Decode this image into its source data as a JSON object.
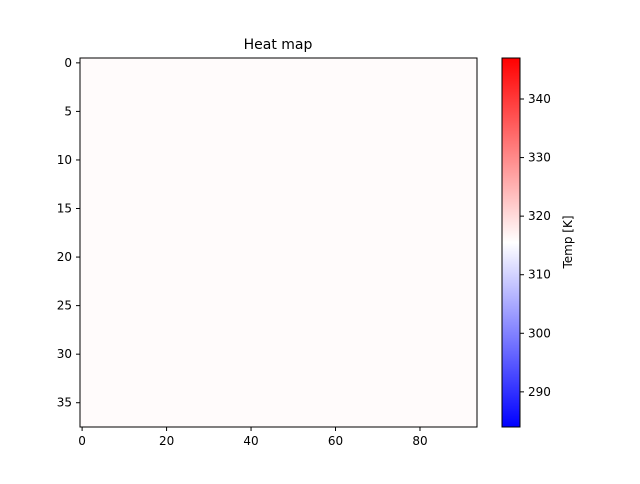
{
  "chart_data": {
    "type": "heatmap",
    "title": "Heat map",
    "xlabel": "",
    "ylabel": "",
    "xlim": [
      -0.5,
      93.5
    ],
    "ylim": [
      37.5,
      -0.5
    ],
    "x_ticks": [
      0,
      20,
      40,
      60,
      80
    ],
    "y_ticks": [
      0,
      5,
      10,
      15,
      20,
      25,
      30,
      35
    ],
    "grid": false,
    "colormap": "bwr",
    "colorbar": {
      "label": "Temp [K]",
      "range": [
        284,
        347
      ],
      "ticks": [
        290,
        300,
        310,
        320,
        330,
        340
      ],
      "colors": [
        "#0000ff",
        "#ffffff",
        "#ff0000"
      ]
    },
    "data_summary": {
      "rows": 38,
      "cols": 94,
      "approx_value": 316,
      "note_visible": "field appears nearly uniform"
    }
  }
}
